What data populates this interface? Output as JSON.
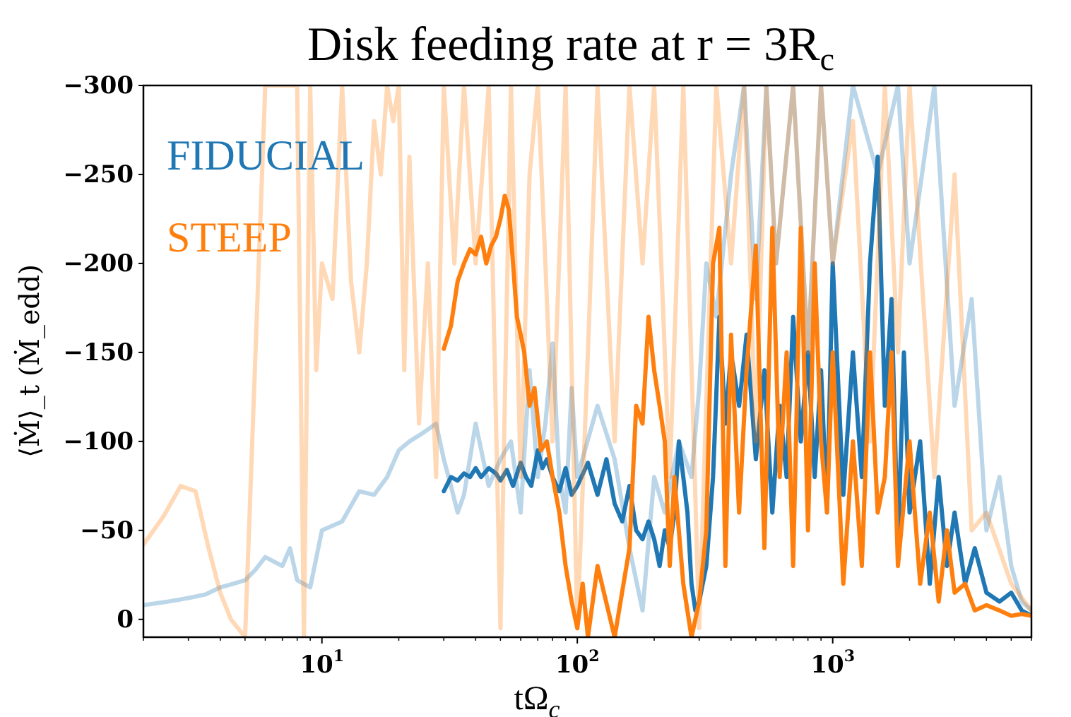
{
  "chart_data": {
    "type": "line",
    "title": "Disk feeding rate at r = 3R",
    "title_sub": "c",
    "xlabel": "tΩ",
    "xlabel_sub": "c",
    "ylabel": "⟨Ṁ⟩_t (Ṁ_edd)",
    "xscale": "log",
    "xlim": [
      2,
      6000
    ],
    "ylim": [
      -300,
      10
    ],
    "yaxis_inverted": true,
    "yticks": [
      0,
      -50,
      -100,
      -150,
      -200,
      -250,
      -300
    ],
    "ytick_labels": [
      "0",
      "−50",
      "−100",
      "−150",
      "−200",
      "−250",
      "−300"
    ],
    "xticks": [
      10,
      100,
      1000
    ],
    "xtick_labels": [
      "10",
      "10",
      "10"
    ],
    "xtick_exponents": [
      "1",
      "2",
      "3"
    ],
    "legend": [
      {
        "name": "FIDUCIAL",
        "color": "#1f77b4"
      },
      {
        "name": "STEEP",
        "color": "#ff7f0e"
      }
    ],
    "series": [
      {
        "name": "FIDUCIAL raw",
        "color": "#1f77b4",
        "opacity": 0.3,
        "x": [
          2,
          2.5,
          3,
          3.5,
          4,
          4.5,
          5,
          5.5,
          6,
          7,
          7.5,
          8,
          9,
          10,
          12,
          14,
          16,
          18,
          20,
          22,
          25,
          28,
          30,
          32,
          34,
          36,
          40,
          45,
          50,
          55,
          60,
          65,
          70,
          75,
          80,
          85,
          90,
          95,
          100,
          120,
          140,
          160,
          180,
          200,
          220,
          250,
          280,
          300,
          320,
          350,
          400,
          450,
          500,
          550,
          600,
          700,
          800,
          900,
          1000,
          1200,
          1500,
          1800,
          2000,
          2500,
          3000,
          3500,
          4000,
          4500,
          5000,
          5500,
          6000
        ],
        "y": [
          -8,
          -10,
          -12,
          -14,
          -18,
          -20,
          -22,
          -28,
          -35,
          -30,
          -40,
          -22,
          -18,
          -50,
          -55,
          -72,
          -70,
          -80,
          -95,
          -100,
          -105,
          -110,
          -90,
          -75,
          -60,
          -70,
          -110,
          -75,
          -90,
          -100,
          -60,
          -140,
          -80,
          -110,
          -155,
          -80,
          -60,
          -130,
          -80,
          -120,
          -90,
          -40,
          -5,
          -80,
          -60,
          -100,
          -80,
          -130,
          -200,
          -170,
          -250,
          -300,
          -180,
          -300,
          -200,
          -300,
          -150,
          -300,
          -200,
          -300,
          -250,
          -300,
          -200,
          -300,
          -120,
          -180,
          -50,
          -80,
          -30,
          -10,
          -5
        ]
      },
      {
        "name": "FIDUCIAL",
        "color": "#1f77b4",
        "opacity": 1.0,
        "x": [
          30,
          32,
          34,
          36,
          38,
          40,
          42,
          45,
          48,
          50,
          53,
          56,
          60,
          63,
          66,
          70,
          73,
          76,
          80,
          85,
          90,
          95,
          100,
          110,
          120,
          130,
          140,
          150,
          160,
          170,
          180,
          190,
          200,
          210,
          220,
          230,
          240,
          250,
          260,
          270,
          280,
          290,
          300,
          320,
          340,
          360,
          380,
          400,
          430,
          460,
          500,
          540,
          580,
          620,
          660,
          700,
          750,
          800,
          850,
          900,
          950,
          1000,
          1100,
          1200,
          1300,
          1400,
          1500,
          1600,
          1700,
          1800,
          1900,
          2000,
          2200,
          2400,
          2600,
          2800,
          3000,
          3300,
          3600,
          4000,
          4500,
          5000,
          5500,
          6000
        ],
        "y": [
          -72,
          -80,
          -78,
          -82,
          -80,
          -85,
          -80,
          -85,
          -82,
          -78,
          -84,
          -75,
          -88,
          -80,
          -75,
          -95,
          -85,
          -90,
          -80,
          -72,
          -85,
          -70,
          -75,
          -88,
          -70,
          -90,
          -65,
          -55,
          -75,
          -50,
          -45,
          -55,
          -45,
          -30,
          -50,
          -40,
          -60,
          -100,
          -80,
          -60,
          -20,
          -5,
          -10,
          -30,
          -80,
          -170,
          -110,
          -150,
          -120,
          -160,
          -90,
          -140,
          -60,
          -120,
          -80,
          -170,
          -100,
          -150,
          -80,
          -140,
          -60,
          -200,
          -70,
          -150,
          -80,
          -200,
          -260,
          -120,
          -180,
          -40,
          -150,
          -60,
          -100,
          -20,
          -80,
          -30,
          -60,
          -20,
          -40,
          -15,
          -10,
          -15,
          -5,
          -2
        ]
      },
      {
        "name": "STEEP raw",
        "color": "#ff7f0e",
        "opacity": 0.3,
        "x": [
          2,
          2.4,
          2.8,
          3.2,
          3.6,
          4,
          4.4,
          5,
          6,
          7,
          8,
          8.5,
          9,
          9.5,
          10,
          11,
          12,
          13,
          14,
          15,
          16,
          17,
          18,
          19,
          20,
          21,
          22,
          24,
          26,
          28,
          30,
          33,
          36,
          40,
          45,
          50,
          55,
          60,
          65,
          70,
          75,
          80,
          90,
          100,
          110,
          120,
          140,
          160,
          180,
          200,
          230,
          260,
          300,
          350,
          400,
          450,
          500,
          550,
          600,
          700,
          800,
          900,
          1000,
          1200,
          1400,
          1600,
          1800,
          2000,
          2500,
          3000,
          3500,
          4000,
          5000,
          6000
        ],
        "y": [
          -42,
          -58,
          -75,
          -72,
          -40,
          -15,
          0,
          10,
          -300,
          -300,
          -300,
          10,
          -300,
          -140,
          -200,
          -180,
          -300,
          -190,
          -150,
          -200,
          -280,
          -250,
          -300,
          -280,
          -300,
          -140,
          -260,
          -110,
          -200,
          -80,
          -300,
          -200,
          -300,
          -200,
          -300,
          5,
          -300,
          -80,
          -250,
          -300,
          -200,
          -100,
          -300,
          5,
          -150,
          -300,
          -100,
          -300,
          -200,
          -300,
          -80,
          -300,
          5,
          -300,
          -200,
          -300,
          -100,
          -300,
          -200,
          -300,
          -150,
          -300,
          -200,
          -280,
          -100,
          -300,
          -150,
          -300,
          -80,
          -250,
          -50,
          -60,
          -20,
          -5
        ]
      },
      {
        "name": "STEEP",
        "color": "#ff7f0e",
        "opacity": 1.0,
        "x": [
          30,
          32,
          34,
          36,
          38,
          40,
          42,
          44,
          46,
          48,
          50,
          52,
          54,
          56,
          58,
          60,
          62,
          65,
          68,
          72,
          76,
          80,
          85,
          90,
          95,
          100,
          105,
          110,
          120,
          140,
          160,
          170,
          180,
          190,
          200,
          210,
          220,
          230,
          240,
          260,
          280,
          300,
          320,
          340,
          360,
          380,
          400,
          430,
          460,
          500,
          540,
          580,
          620,
          660,
          700,
          750,
          800,
          850,
          900,
          950,
          1000,
          1100,
          1200,
          1300,
          1400,
          1500,
          1600,
          1700,
          1800,
          2000,
          2200,
          2400,
          2600,
          2800,
          3000,
          3300,
          3600,
          4000,
          4500,
          5000,
          5500,
          6000
        ],
        "y": [
          -152,
          -165,
          -190,
          -200,
          -208,
          -205,
          -215,
          -200,
          -210,
          -215,
          -225,
          -238,
          -230,
          -200,
          -170,
          -160,
          -150,
          -120,
          -130,
          -95,
          -100,
          -80,
          -60,
          -30,
          -10,
          5,
          -20,
          10,
          -30,
          10,
          -40,
          -120,
          -110,
          -170,
          -140,
          -120,
          -100,
          -30,
          -80,
          -20,
          10,
          -10,
          -50,
          -200,
          -220,
          -30,
          -160,
          -60,
          -140,
          -210,
          -40,
          -220,
          -80,
          -150,
          -30,
          -220,
          -50,
          -200,
          -100,
          -60,
          -150,
          -20,
          -100,
          -30,
          -150,
          -60,
          -80,
          -150,
          -30,
          -100,
          -20,
          -60,
          -10,
          -50,
          -15,
          -20,
          -5,
          -8,
          -5,
          -2,
          -3,
          -2
        ]
      }
    ]
  }
}
